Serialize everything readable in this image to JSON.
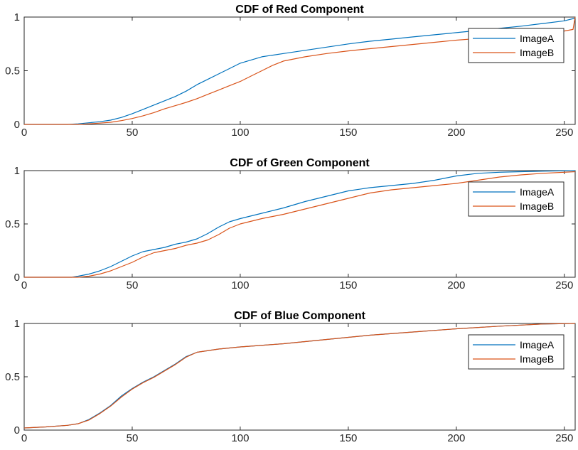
{
  "colors": {
    "imageA": "#0072BD",
    "imageB": "#D95319",
    "axis": "#262626"
  },
  "chart_data": [
    {
      "type": "line",
      "title": "CDF of Red Component",
      "xlabel": "",
      "ylabel": "",
      "xlim": [
        0,
        255
      ],
      "ylim": [
        0,
        1
      ],
      "xticks": [
        0,
        50,
        100,
        150,
        200,
        250
      ],
      "yticks": [
        0,
        0.5,
        1
      ],
      "grid": false,
      "legend_position": "top-right",
      "series": [
        {
          "name": "ImageA",
          "x": [
            0,
            20,
            25,
            30,
            35,
            40,
            45,
            50,
            55,
            60,
            65,
            70,
            75,
            80,
            85,
            90,
            95,
            100,
            105,
            110,
            115,
            120,
            130,
            140,
            150,
            160,
            170,
            180,
            190,
            200,
            210,
            220,
            230,
            240,
            250,
            255
          ],
          "y": [
            0,
            0,
            0.005,
            0.015,
            0.025,
            0.04,
            0.065,
            0.1,
            0.14,
            0.18,
            0.22,
            0.26,
            0.31,
            0.37,
            0.42,
            0.47,
            0.52,
            0.57,
            0.6,
            0.63,
            0.645,
            0.66,
            0.69,
            0.72,
            0.75,
            0.775,
            0.795,
            0.815,
            0.835,
            0.855,
            0.875,
            0.895,
            0.915,
            0.94,
            0.965,
            0.99
          ]
        },
        {
          "name": "ImageB",
          "x": [
            0,
            25,
            30,
            35,
            40,
            45,
            50,
            55,
            60,
            65,
            70,
            75,
            80,
            85,
            90,
            95,
            100,
            105,
            110,
            115,
            120,
            130,
            140,
            150,
            160,
            170,
            180,
            190,
            200,
            210,
            220,
            230,
            240,
            250,
            254,
            255
          ],
          "y": [
            0,
            0,
            0.005,
            0.012,
            0.02,
            0.035,
            0.055,
            0.08,
            0.11,
            0.145,
            0.175,
            0.205,
            0.24,
            0.28,
            0.32,
            0.36,
            0.4,
            0.45,
            0.5,
            0.55,
            0.59,
            0.63,
            0.66,
            0.685,
            0.705,
            0.725,
            0.745,
            0.765,
            0.785,
            0.8,
            0.815,
            0.83,
            0.85,
            0.87,
            0.885,
            1.0
          ]
        }
      ]
    },
    {
      "type": "line",
      "title": "CDF of Green Component",
      "xlabel": "",
      "ylabel": "",
      "xlim": [
        0,
        255
      ],
      "ylim": [
        0,
        1
      ],
      "xticks": [
        0,
        50,
        100,
        150,
        200,
        250
      ],
      "yticks": [
        0,
        0.5,
        1
      ],
      "grid": false,
      "legend_position": "top-right",
      "series": [
        {
          "name": "ImageA",
          "x": [
            0,
            22,
            25,
            30,
            35,
            40,
            45,
            50,
            55,
            60,
            65,
            70,
            75,
            80,
            85,
            90,
            95,
            100,
            110,
            120,
            130,
            140,
            150,
            160,
            170,
            180,
            190,
            200,
            210,
            220,
            230,
            240,
            255
          ],
          "y": [
            0,
            0,
            0.01,
            0.03,
            0.06,
            0.1,
            0.15,
            0.2,
            0.24,
            0.26,
            0.28,
            0.31,
            0.33,
            0.36,
            0.41,
            0.47,
            0.52,
            0.55,
            0.6,
            0.65,
            0.71,
            0.76,
            0.81,
            0.84,
            0.86,
            0.88,
            0.91,
            0.95,
            0.975,
            0.985,
            0.99,
            0.995,
            1.0
          ]
        },
        {
          "name": "ImageB",
          "x": [
            0,
            25,
            30,
            35,
            40,
            45,
            50,
            55,
            60,
            65,
            70,
            75,
            80,
            85,
            90,
            95,
            100,
            110,
            120,
            130,
            140,
            150,
            160,
            170,
            180,
            190,
            200,
            210,
            220,
            230,
            240,
            255
          ],
          "y": [
            0,
            0,
            0.01,
            0.03,
            0.06,
            0.1,
            0.14,
            0.19,
            0.23,
            0.25,
            0.27,
            0.3,
            0.32,
            0.35,
            0.4,
            0.46,
            0.5,
            0.55,
            0.59,
            0.64,
            0.69,
            0.74,
            0.79,
            0.82,
            0.84,
            0.86,
            0.88,
            0.91,
            0.94,
            0.96,
            0.975,
            0.99
          ]
        }
      ]
    },
    {
      "type": "line",
      "title": "CDF of Blue Component",
      "xlabel": "",
      "ylabel": "",
      "xlim": [
        0,
        255
      ],
      "ylim": [
        0,
        1
      ],
      "xticks": [
        0,
        50,
        100,
        150,
        200,
        250
      ],
      "yticks": [
        0,
        0.5,
        1
      ],
      "grid": false,
      "legend_position": "top-right",
      "series": [
        {
          "name": "ImageA",
          "x": [
            0,
            10,
            20,
            25,
            30,
            35,
            40,
            45,
            50,
            55,
            60,
            65,
            70,
            75,
            80,
            90,
            100,
            120,
            140,
            160,
            180,
            200,
            220,
            240,
            255
          ],
          "y": [
            0.02,
            0.03,
            0.045,
            0.06,
            0.1,
            0.16,
            0.23,
            0.32,
            0.39,
            0.45,
            0.5,
            0.56,
            0.62,
            0.69,
            0.73,
            0.76,
            0.78,
            0.81,
            0.85,
            0.89,
            0.92,
            0.95,
            0.975,
            0.995,
            1.0
          ]
        },
        {
          "name": "ImageB",
          "x": [
            0,
            10,
            20,
            25,
            30,
            35,
            40,
            45,
            50,
            55,
            60,
            65,
            70,
            75,
            80,
            90,
            100,
            120,
            140,
            160,
            180,
            200,
            220,
            240,
            255
          ],
          "y": [
            0.02,
            0.03,
            0.045,
            0.06,
            0.095,
            0.155,
            0.225,
            0.31,
            0.385,
            0.445,
            0.495,
            0.555,
            0.615,
            0.685,
            0.73,
            0.76,
            0.78,
            0.81,
            0.85,
            0.89,
            0.92,
            0.95,
            0.975,
            0.995,
            1.0
          ]
        }
      ]
    }
  ]
}
